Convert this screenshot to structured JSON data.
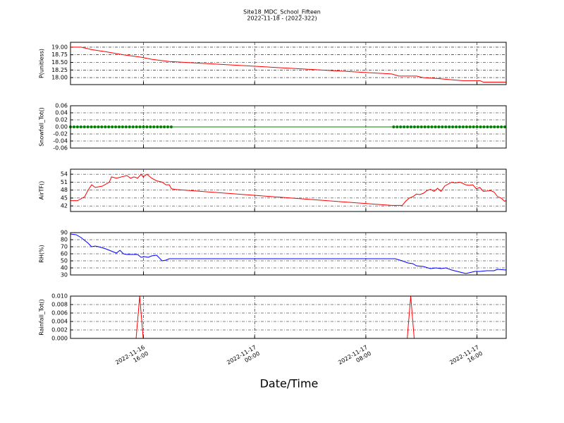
{
  "title": "Site18_MDC_School_Fifteen",
  "subtitle": "2022-11-18 - (2022-322)",
  "xlabel": "Date/Time",
  "xlim": [
    10.75,
    42.1
  ],
  "xticks": [
    {
      "value": 16,
      "label": "2022-11-16\n16:00"
    },
    {
      "value": 24,
      "label": "2022-11-17\n00:00"
    },
    {
      "value": 32,
      "label": "2022-11-17\n08:00"
    },
    {
      "value": 40,
      "label": "2022-11-17\n16:00"
    }
  ],
  "chart_data": [
    {
      "type": "line",
      "ylabel": "P(unitless)",
      "color": "#ff0000",
      "grid": true,
      "ylim": [
        17.77,
        19.16
      ],
      "yticks": [
        {
          "value": 18,
          "label": "18.00"
        },
        {
          "value": 18.25,
          "label": "18.25"
        },
        {
          "value": 18.5,
          "label": "18.50"
        },
        {
          "value": 18.75,
          "label": "18.75"
        },
        {
          "value": 19,
          "label": "19.00"
        }
      ],
      "x": [
        10.75,
        11.51,
        12.27,
        13.29,
        14.56,
        15.83,
        16.59,
        17.86,
        33.86,
        34.37,
        35.64,
        36.14,
        37.16,
        38.17,
        38.94,
        40.21,
        40.46,
        42.1
      ],
      "values": [
        19.0,
        19.0,
        18.92,
        18.85,
        18.75,
        18.67,
        18.6,
        18.53,
        18.12,
        18.05,
        18.05,
        18.0,
        17.97,
        17.93,
        17.9,
        17.9,
        17.85,
        17.85
      ]
    },
    {
      "type": "line",
      "ylabel": "Snowfall_Tot()",
      "color": "#008000",
      "grid": true,
      "marker": true,
      "ylim": [
        -0.06,
        0.06
      ],
      "yticks": [
        -0.06,
        -0.04,
        -0.02,
        {
          "value": 0,
          "label": "0.00"
        },
        0.02,
        0.04,
        0.06
      ],
      "x": [
        10.75,
        11,
        11.25,
        11.5,
        11.75,
        12,
        12.25,
        12.5,
        12.75,
        13,
        13.25,
        13.5,
        13.75,
        14,
        14.25,
        14.5,
        14.75,
        15,
        15.25,
        15.5,
        15.75,
        16,
        16.25,
        16.5,
        16.75,
        17,
        17.25,
        17.5,
        17.75,
        18,
        34,
        34.25,
        34.5,
        34.75,
        35,
        35.25,
        35.5,
        35.75,
        36,
        36.25,
        36.5,
        36.75,
        37,
        37.25,
        37.5,
        37.75,
        38,
        38.25,
        38.5,
        38.75,
        39,
        39.25,
        39.5,
        39.75,
        40,
        40.25,
        40.5,
        40.75,
        41,
        41.25,
        41.5,
        41.75,
        42
      ],
      "values": [
        0,
        0,
        0,
        0,
        0,
        0,
        0,
        0,
        0,
        0,
        0,
        0,
        0,
        0,
        0,
        0,
        0,
        0,
        0,
        0,
        0,
        0,
        0,
        0,
        0,
        0,
        0,
        0,
        0,
        0,
        0,
        0,
        0,
        0,
        0,
        0,
        0,
        0,
        0,
        0,
        0,
        0,
        0,
        0,
        0,
        0,
        0,
        0,
        0,
        0,
        0,
        0,
        0,
        0,
        0,
        0,
        0,
        0,
        0,
        0,
        0,
        0,
        0
      ]
    },
    {
      "type": "line",
      "ylabel": "AirTF()",
      "color": "#ff0000",
      "grid": true,
      "ylim": [
        39.9,
        55.9
      ],
      "yticks": [
        42,
        45,
        48,
        51,
        54
      ],
      "x": [
        10.75,
        11.26,
        11.77,
        12.02,
        12.27,
        12.53,
        13.04,
        13.54,
        13.7,
        14.05,
        14.81,
        15.07,
        15.32,
        15.58,
        15.83,
        15.98,
        16.24,
        16.59,
        16.95,
        17.35,
        17.61,
        17.86,
        18.01,
        18.37,
        33.86,
        34.62,
        34.87,
        35.13,
        35.38,
        35.64,
        35.89,
        36.14,
        36.4,
        36.65,
        36.91,
        37.16,
        37.41,
        37.67,
        37.92,
        38.18,
        38.43,
        38.78,
        39.19,
        39.44,
        39.7,
        39.95,
        40.21,
        40.46,
        40.97,
        41.22,
        41.48,
        41.73,
        41.98,
        42.1
      ],
      "values": [
        44,
        44,
        45.5,
        48,
        50,
        49,
        49.5,
        51,
        53,
        52.5,
        53.5,
        52.5,
        53,
        52.5,
        54,
        53,
        54,
        52.5,
        51.5,
        51,
        50,
        50,
        48.5,
        48.2,
        42.2,
        42.2,
        43.8,
        45,
        45.5,
        46.5,
        46.3,
        46.8,
        47.8,
        48.3,
        47.5,
        48.7,
        47.5,
        49.5,
        50.3,
        51,
        50.7,
        51,
        50,
        49.8,
        50,
        48.5,
        49,
        47.5,
        47.8,
        47.3,
        45.5,
        45,
        43.8,
        44
      ]
    },
    {
      "type": "line",
      "ylabel": "RH(%)",
      "color": "#0000ff",
      "grid": true,
      "ylim": [
        30,
        90
      ],
      "yticks": [
        30,
        40,
        50,
        60,
        70,
        80,
        90
      ],
      "x": [
        10.75,
        11.16,
        11.51,
        12.02,
        12.27,
        12.53,
        12.78,
        13.29,
        13.8,
        14.05,
        14.31,
        14.56,
        14.81,
        15.58,
        15.83,
        16.08,
        16.34,
        16.59,
        16.95,
        17.35,
        17.61,
        17.86,
        34.11,
        34.62,
        35.03,
        35.38,
        35.64,
        36.14,
        36.65,
        37.06,
        37.41,
        37.77,
        38.18,
        38.58,
        38.78,
        39.19,
        39.85,
        40.21,
        40.71,
        41.22,
        41.48,
        42.1
      ],
      "values": [
        88,
        87,
        83,
        75,
        70,
        71,
        70,
        67,
        63,
        61,
        65,
        60,
        59,
        59,
        55,
        56,
        55,
        57,
        58,
        50,
        51,
        53,
        53,
        50,
        47,
        46,
        43,
        42,
        39,
        40,
        39,
        40,
        37,
        35,
        34,
        32,
        35,
        35,
        36,
        36,
        38,
        37
      ]
    },
    {
      "type": "line",
      "ylabel": "Rainfall_Tot()",
      "color": "#ff0000",
      "grid": true,
      "ylim": [
        0,
        0.01
      ],
      "yticks": [
        {
          "value": 0,
          "label": "0.000"
        },
        {
          "value": 0.002,
          "label": "0.002"
        },
        {
          "value": 0.004,
          "label": "0.004"
        },
        {
          "value": 0.006,
          "label": "0.006"
        },
        {
          "value": 0.008,
          "label": "0.008"
        },
        {
          "value": 0.01,
          "label": "0.010"
        }
      ],
      "x": [
        10.75,
        15.47,
        15.73,
        15.98,
        34.98,
        35.23,
        35.48,
        42.1
      ],
      "values": [
        0,
        0,
        0.01,
        0,
        0,
        0.01,
        0,
        0
      ]
    }
  ]
}
